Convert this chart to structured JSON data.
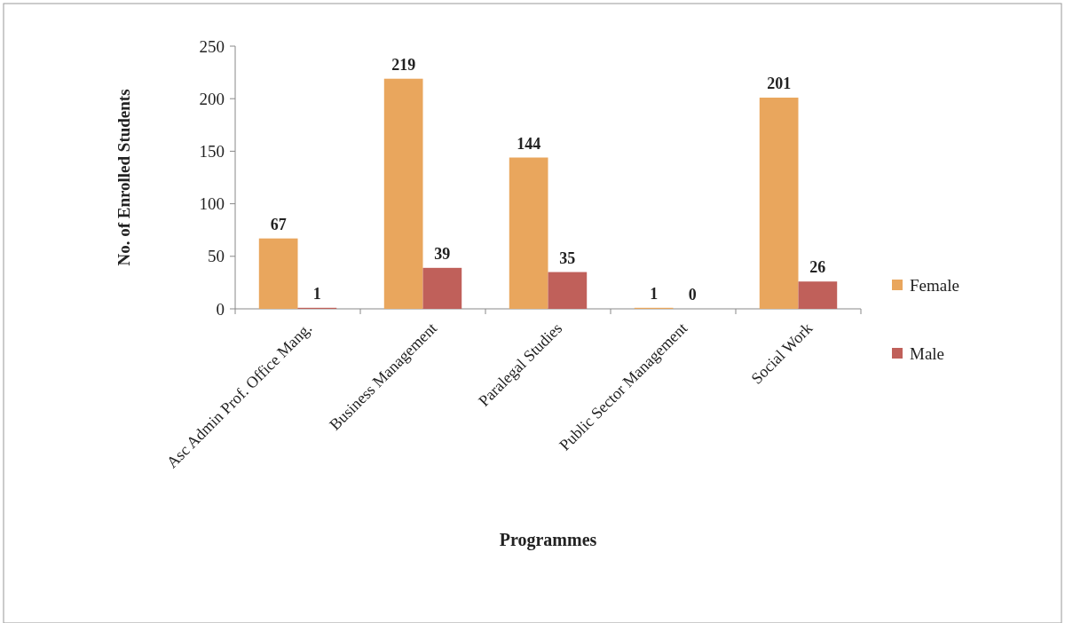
{
  "chart_data": {
    "type": "bar",
    "xlabel": "Programmes",
    "ylabel": "No. of Enrolled Students",
    "categories": [
      "Asc Admin Prof. Office Mang.",
      "Business Management",
      "Paralegal Studies",
      "Public Sector Management",
      "Social Work"
    ],
    "series": [
      {
        "name": "Female",
        "color": "#e9a65d",
        "values": [
          67,
          219,
          144,
          1,
          201
        ]
      },
      {
        "name": "Male",
        "color": "#c0605a",
        "values": [
          1,
          39,
          35,
          0,
          26
        ]
      }
    ],
    "ylim": [
      0,
      250
    ],
    "yticks": [
      0,
      50,
      100,
      150,
      200,
      250
    ],
    "grid": false,
    "legend": "right",
    "data_labels": true
  }
}
